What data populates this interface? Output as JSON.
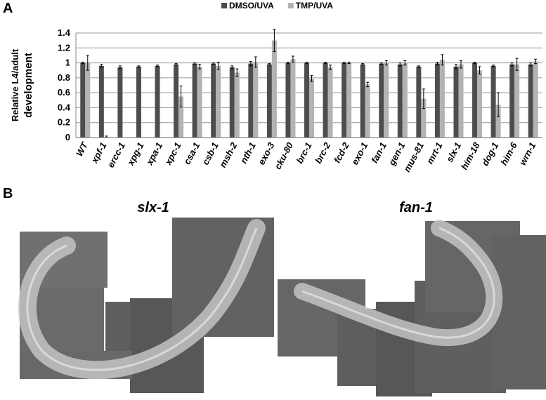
{
  "panels": [
    "A",
    "B"
  ],
  "images": [
    "slx-1",
    "fan-1"
  ],
  "chart_data": {
    "type": "bar",
    "ylabel": [
      "Relative L4/adult",
      "development"
    ],
    "categories": [
      "WT",
      "xpf-1",
      "ercc-1",
      "xpg-1",
      "xpa-1",
      "xpc-1",
      "csa-1",
      "csb-1",
      "msh-2",
      "nth-1",
      "exo-3",
      "cku-80",
      "brc-1",
      "brc-2",
      "fcd-2",
      "exo-1",
      "fan-1",
      "gen-1",
      "mus-81",
      "mrt-1",
      "slx-1",
      "him-18",
      "dog-1",
      "him-6",
      "wrn-1"
    ],
    "series": [
      {
        "name": "DMSO/UVA",
        "color": "#4d4d4d",
        "values": [
          1.0,
          0.96,
          0.94,
          0.95,
          0.96,
          0.98,
          0.99,
          0.99,
          0.94,
          0.99,
          0.98,
          1.0,
          1.0,
          1.0,
          1.0,
          0.98,
          0.99,
          0.98,
          0.95,
          0.99,
          0.95,
          1.0,
          0.96,
          0.98,
          0.98
        ],
        "errors": [
          0.01,
          0.02,
          0.02,
          0.01,
          0.01,
          0.01,
          0.01,
          0.01,
          0.02,
          0.03,
          0.01,
          0.01,
          0.01,
          0.01,
          0.01,
          0.01,
          0.01,
          0.02,
          0.01,
          0.02,
          0.03,
          0.01,
          0.01,
          0.02,
          0.02
        ]
      },
      {
        "name": "TMP/UVA",
        "color": "#b3b3b3",
        "values": [
          1.0,
          0.01,
          0,
          0,
          0,
          0.55,
          0.95,
          0.96,
          0.87,
          1.01,
          1.3,
          1.05,
          0.79,
          0.94,
          1.0,
          0.71,
          1.0,
          1.0,
          0.52,
          1.04,
          0.98,
          0.9,
          0.44,
          0.98,
          1.02
        ],
        "errors": [
          0.1,
          0.01,
          0,
          0,
          0,
          0.14,
          0.03,
          0.05,
          0.05,
          0.07,
          0.15,
          0.04,
          0.04,
          0.03,
          0.01,
          0.03,
          0.03,
          0.03,
          0.13,
          0.07,
          0.05,
          0.05,
          0.16,
          0.08,
          0.03
        ]
      }
    ],
    "ylim": [
      0,
      1.4
    ],
    "yticks": [
      0,
      0.2,
      0.4,
      0.6,
      0.8,
      1,
      1.2,
      1.4
    ],
    "grid": true
  }
}
